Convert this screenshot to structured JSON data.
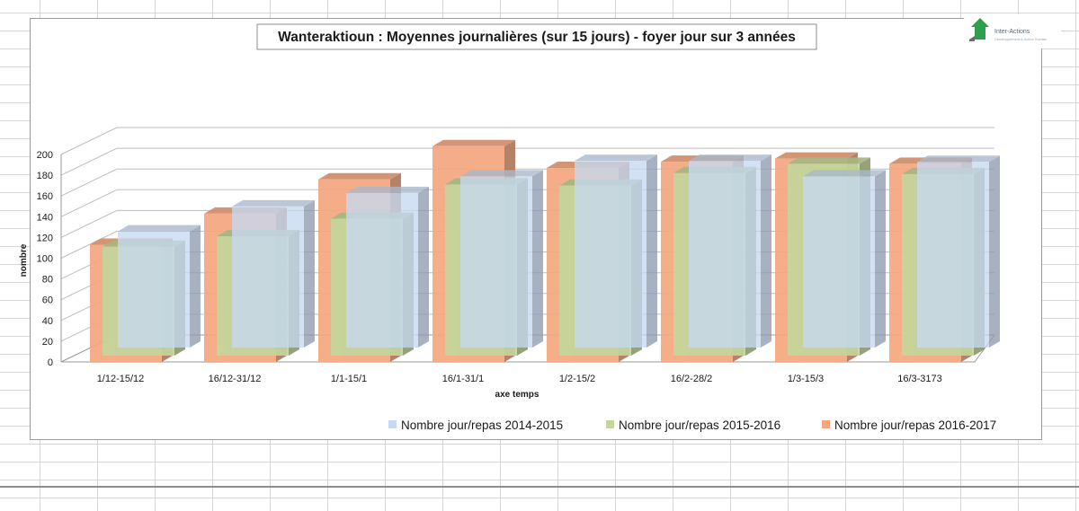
{
  "logo": {
    "name": "Inter-Actions",
    "tagline": "Développement & Action Sociale",
    "color": "#2e9e4f"
  },
  "chart_data": {
    "type": "bar",
    "title": "Wanteraktioun : Moyennes journalières (sur 15 jours) - foyer jour sur 3 années",
    "xlabel": "axe temps",
    "ylabel": "nombre",
    "ylim": [
      0,
      200
    ],
    "yticks": [
      0,
      20,
      40,
      60,
      80,
      100,
      120,
      140,
      160,
      180,
      200
    ],
    "categories": [
      "1/12-15/12",
      "16/12-31/12",
      "1/1-15/1",
      "16/1-31/1",
      "1/2-15/2",
      "16/2-28/2",
      "1/3-15/3",
      "16/3-3173"
    ],
    "series": [
      {
        "name": "Nombre jour/repas 2014-2015",
        "values": [
          112,
          136,
          149,
          165,
          180,
          180,
          165,
          179
        ],
        "color": "#c6d9f1"
      },
      {
        "name": "Nombre jour/repas 2015-2016",
        "values": [
          105,
          115,
          132,
          165,
          164,
          176,
          185,
          175
        ],
        "color": "#c3d69b"
      },
      {
        "name": "Nombre jour/repas 2016-2017",
        "values": [
          113,
          143,
          176,
          208,
          187,
          193,
          196,
          191
        ],
        "color": "#f4a77e"
      }
    ],
    "legend_position": "bottom-right",
    "grid": true
  }
}
